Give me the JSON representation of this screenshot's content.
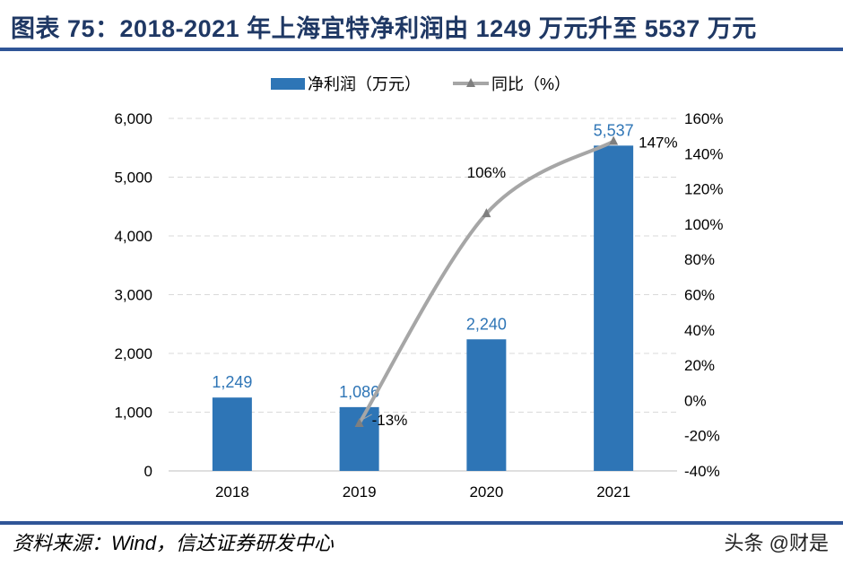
{
  "title": "图表 75：2018-2021 年上海宜特净利润由 1249 万元升至 5537 万元",
  "source": "资料来源：Wind，信达证券研发中心",
  "watermark": "头条 @财是",
  "chart_data": {
    "type": "bar+line",
    "categories": [
      "2018",
      "2019",
      "2020",
      "2021"
    ],
    "series": [
      {
        "name": "净利润（万元）",
        "type": "bar",
        "axis": "left",
        "values": [
          1249,
          1086,
          2240,
          5537
        ],
        "labels": [
          "1,249",
          "1,086",
          "2,240",
          "5,537"
        ],
        "color": "#2E75B6"
      },
      {
        "name": "同比（%）",
        "type": "line",
        "axis": "right",
        "values": [
          null,
          -13,
          106,
          147
        ],
        "labels": [
          "",
          "-13%",
          "106%",
          "147%"
        ],
        "color": "#A6A6A6",
        "marker": "triangle"
      }
    ],
    "y_left": {
      "lim": [
        0,
        6000
      ],
      "ticks": [
        "0",
        "1,000",
        "2,000",
        "3,000",
        "4,000",
        "5,000",
        "6,000"
      ]
    },
    "y_right": {
      "lim": [
        -40,
        160
      ],
      "ticks": [
        "-40%",
        "-20%",
        "0%",
        "20%",
        "40%",
        "60%",
        "80%",
        "100%",
        "120%",
        "140%",
        "160%"
      ]
    },
    "grid": "horizontal dashed",
    "legend": "top-center"
  }
}
